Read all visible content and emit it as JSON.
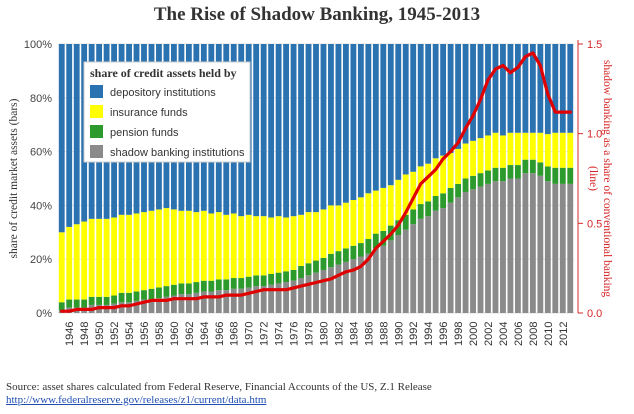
{
  "page": {
    "title": "The Rise of Shadow Banking, 1945-2013",
    "source_line": "Source: asset shares calculated from Federal Reserve, Financial Accounts of the US, Z.1 Release",
    "source_url": "http://www.federalreserve.gov/releases/z1/current/data.htm"
  },
  "colors": {
    "depository": "#2b72b0",
    "insurance": "#ffff00",
    "pension": "#2d9a2d",
    "shadow": "#8a8a8a",
    "line": "#e00000",
    "right_axis": "#d62728"
  },
  "chart_data": {
    "type": "bar",
    "title": "The Rise of Shadow Banking, 1945-2013",
    "x_tick_labels": [
      "1946",
      "1948",
      "1950",
      "1952",
      "1954",
      "1956",
      "1958",
      "1960",
      "1962",
      "1964",
      "1966",
      "1968",
      "1970",
      "1972",
      "1974",
      "1976",
      "1978",
      "1980",
      "1982",
      "1984",
      "1986",
      "1988",
      "1990",
      "1992",
      "1994",
      "1996",
      "1998",
      "2000",
      "2002",
      "2004",
      "2006",
      "2008",
      "2010",
      "2012"
    ],
    "ylabel": "share of credit market assets (bars)",
    "y2label": "shadow banking as a share of conventional banking (line)",
    "y_tick_labels": [
      "0%",
      "20%",
      "40%",
      "60%",
      "80%",
      "100%"
    ],
    "y2_tick_labels": [
      "0.0",
      "0.5",
      "1.0",
      "1.5"
    ],
    "ylim": [
      0,
      1
    ],
    "y2lim": [
      0,
      1.5
    ],
    "legend_title": "share of credit assets held by",
    "legend_position": "top-left",
    "categories": [
      1945,
      1946,
      1947,
      1948,
      1949,
      1950,
      1951,
      1952,
      1953,
      1954,
      1955,
      1956,
      1957,
      1958,
      1959,
      1960,
      1961,
      1962,
      1963,
      1964,
      1965,
      1966,
      1967,
      1968,
      1969,
      1970,
      1971,
      1972,
      1973,
      1974,
      1975,
      1976,
      1977,
      1978,
      1979,
      1980,
      1981,
      1982,
      1983,
      1984,
      1985,
      1986,
      1987,
      1988,
      1989,
      1990,
      1991,
      1992,
      1993,
      1994,
      1995,
      1996,
      1997,
      1998,
      1999,
      2000,
      2001,
      2002,
      2003,
      2004,
      2005,
      2006,
      2007,
      2008,
      2009,
      2010,
      2011,
      2012,
      2013
    ],
    "series": [
      {
        "name": "shadow banking institutions",
        "values": [
          0.01,
          0.02,
          0.02,
          0.02,
          0.03,
          0.03,
          0.03,
          0.035,
          0.04,
          0.04,
          0.045,
          0.05,
          0.05,
          0.055,
          0.06,
          0.065,
          0.07,
          0.07,
          0.075,
          0.08,
          0.08,
          0.085,
          0.085,
          0.09,
          0.09,
          0.095,
          0.1,
          0.1,
          0.105,
          0.11,
          0.115,
          0.12,
          0.13,
          0.14,
          0.15,
          0.16,
          0.17,
          0.18,
          0.19,
          0.2,
          0.21,
          0.22,
          0.24,
          0.25,
          0.27,
          0.29,
          0.31,
          0.33,
          0.35,
          0.36,
          0.38,
          0.39,
          0.41,
          0.43,
          0.45,
          0.46,
          0.47,
          0.48,
          0.49,
          0.49,
          0.5,
          0.5,
          0.52,
          0.52,
          0.51,
          0.49,
          0.48,
          0.48,
          0.48
        ]
      },
      {
        "name": "pension funds",
        "values": [
          0.03,
          0.03,
          0.03,
          0.03,
          0.03,
          0.03,
          0.03,
          0.03,
          0.035,
          0.035,
          0.035,
          0.035,
          0.04,
          0.04,
          0.04,
          0.04,
          0.04,
          0.04,
          0.04,
          0.04,
          0.04,
          0.04,
          0.04,
          0.04,
          0.04,
          0.04,
          0.04,
          0.04,
          0.04,
          0.04,
          0.04,
          0.04,
          0.045,
          0.045,
          0.045,
          0.045,
          0.05,
          0.05,
          0.05,
          0.05,
          0.05,
          0.055,
          0.055,
          0.055,
          0.055,
          0.055,
          0.055,
          0.055,
          0.055,
          0.055,
          0.055,
          0.055,
          0.055,
          0.05,
          0.05,
          0.05,
          0.05,
          0.05,
          0.05,
          0.05,
          0.05,
          0.05,
          0.05,
          0.05,
          0.05,
          0.055,
          0.06,
          0.06,
          0.06
        ]
      },
      {
        "name": "insurance funds",
        "values": [
          0.26,
          0.27,
          0.28,
          0.29,
          0.29,
          0.29,
          0.29,
          0.29,
          0.29,
          0.29,
          0.29,
          0.29,
          0.29,
          0.29,
          0.29,
          0.28,
          0.27,
          0.27,
          0.26,
          0.26,
          0.25,
          0.25,
          0.24,
          0.24,
          0.23,
          0.23,
          0.22,
          0.22,
          0.21,
          0.21,
          0.2,
          0.2,
          0.19,
          0.19,
          0.18,
          0.18,
          0.18,
          0.17,
          0.17,
          0.17,
          0.17,
          0.17,
          0.16,
          0.16,
          0.15,
          0.15,
          0.15,
          0.14,
          0.14,
          0.14,
          0.14,
          0.14,
          0.13,
          0.13,
          0.13,
          0.13,
          0.13,
          0.13,
          0.13,
          0.12,
          0.12,
          0.12,
          0.1,
          0.1,
          0.11,
          0.12,
          0.13,
          0.13,
          0.13
        ]
      },
      {
        "name": "depository institutions",
        "values": [
          0.7,
          0.68,
          0.67,
          0.66,
          0.65,
          0.65,
          0.65,
          0.645,
          0.635,
          0.635,
          0.63,
          0.625,
          0.62,
          0.615,
          0.61,
          0.615,
          0.62,
          0.62,
          0.625,
          0.62,
          0.63,
          0.625,
          0.635,
          0.63,
          0.64,
          0.635,
          0.64,
          0.64,
          0.645,
          0.64,
          0.645,
          0.64,
          0.635,
          0.625,
          0.625,
          0.615,
          0.6,
          0.6,
          0.59,
          0.58,
          0.57,
          0.555,
          0.545,
          0.535,
          0.525,
          0.505,
          0.485,
          0.475,
          0.455,
          0.445,
          0.425,
          0.415,
          0.405,
          0.39,
          0.37,
          0.36,
          0.35,
          0.34,
          0.33,
          0.34,
          0.33,
          0.33,
          0.33,
          0.33,
          0.33,
          0.335,
          0.33,
          0.33,
          0.33
        ]
      }
    ],
    "line": {
      "values": [
        0.01,
        0.01,
        0.02,
        0.02,
        0.02,
        0.03,
        0.03,
        0.03,
        0.04,
        0.04,
        0.05,
        0.06,
        0.07,
        0.07,
        0.07,
        0.08,
        0.08,
        0.08,
        0.08,
        0.09,
        0.09,
        0.09,
        0.1,
        0.1,
        0.1,
        0.11,
        0.12,
        0.13,
        0.13,
        0.13,
        0.13,
        0.14,
        0.15,
        0.16,
        0.17,
        0.18,
        0.19,
        0.21,
        0.23,
        0.24,
        0.26,
        0.3,
        0.36,
        0.4,
        0.44,
        0.49,
        0.56,
        0.64,
        0.72,
        0.76,
        0.8,
        0.86,
        0.9,
        0.95,
        1.03,
        1.1,
        1.19,
        1.3,
        1.36,
        1.38,
        1.34,
        1.37,
        1.43,
        1.45,
        1.38,
        1.22,
        1.12,
        1.12,
        1.12
      ]
    }
  }
}
